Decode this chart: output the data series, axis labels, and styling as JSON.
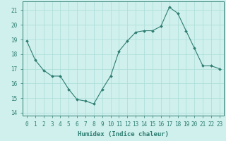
{
  "x": [
    0,
    1,
    2,
    3,
    4,
    5,
    6,
    7,
    8,
    9,
    10,
    11,
    12,
    13,
    14,
    15,
    16,
    17,
    18,
    19,
    20,
    21,
    22,
    23
  ],
  "y": [
    18.9,
    17.6,
    16.9,
    16.5,
    16.5,
    15.6,
    14.9,
    14.8,
    14.6,
    15.6,
    16.5,
    18.2,
    18.9,
    19.5,
    19.6,
    19.6,
    19.9,
    21.2,
    20.8,
    19.6,
    18.4,
    17.2,
    17.2,
    17.0
  ],
  "xlabel": "Humidex (Indice chaleur)",
  "xlim": [
    -0.5,
    23.5
  ],
  "ylim": [
    13.8,
    21.6
  ],
  "yticks": [
    14,
    15,
    16,
    17,
    18,
    19,
    20,
    21
  ],
  "xtick_labels": [
    "0",
    "1",
    "2",
    "3",
    "4",
    "5",
    "6",
    "7",
    "8",
    "9",
    "10",
    "11",
    "12",
    "13",
    "14",
    "15",
    "16",
    "17",
    "18",
    "19",
    "20",
    "21",
    "22",
    "23"
  ],
  "line_color": "#2e7d72",
  "marker": "D",
  "marker_size": 2.0,
  "bg_color": "#cff0ec",
  "grid_color": "#aaddd8",
  "xlabel_fontsize": 6.5,
  "tick_fontsize": 5.5
}
